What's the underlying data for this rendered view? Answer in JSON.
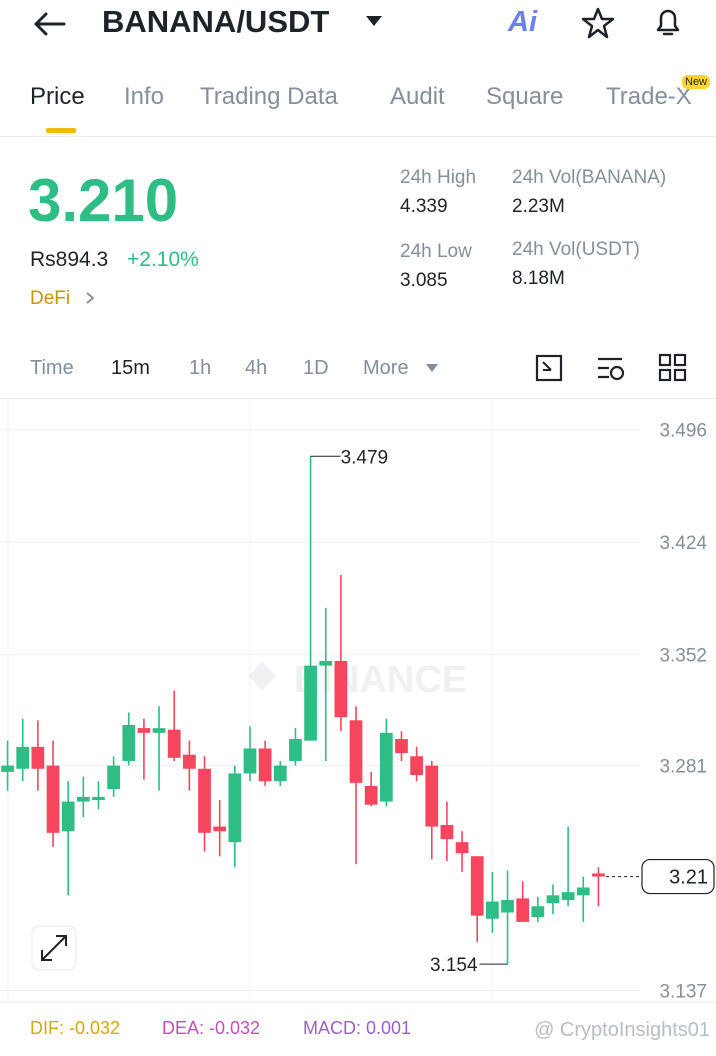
{
  "header": {
    "title": "BANANA/USDT",
    "ai": "Ai"
  },
  "tabs": [
    "Price",
    "Info",
    "Trading Data",
    "Audit",
    "Square",
    "Trade-X"
  ],
  "tab_badge": "New",
  "ticker": {
    "price": "3.210",
    "fiat": "Rs894.3",
    "change": "+2.10%",
    "tag": "DeFi",
    "stats": [
      {
        "label": "24h High",
        "value": "4.339"
      },
      {
        "label": "24h Vol(BANANA)",
        "value": "2.23M"
      },
      {
        "label": "24h Low",
        "value": "3.085"
      },
      {
        "label": "24h Vol(USDT)",
        "value": "8.18M"
      }
    ]
  },
  "timeframes": [
    "Time",
    "15m",
    "1h",
    "4h",
    "1D",
    "More"
  ],
  "chart_data": {
    "type": "candlestick",
    "up_color": "#2ebd85",
    "down_color": "#f6465d",
    "categories": [
      null,
      null,
      null,
      null,
      null,
      null,
      null,
      null,
      null,
      null,
      null,
      null,
      null,
      null,
      null,
      null,
      null,
      null,
      null,
      null,
      null,
      null,
      null,
      null,
      null,
      null,
      null,
      null,
      null,
      null,
      null,
      null,
      null,
      null,
      null,
      null,
      null,
      null,
      null,
      null
    ],
    "open": [
      3.277,
      3.279,
      3.293,
      3.281,
      3.239,
      3.258,
      3.259,
      3.266,
      3.284,
      3.305,
      3.302,
      3.304,
      3.288,
      3.279,
      3.242,
      3.232,
      3.276,
      3.292,
      3.271,
      3.284,
      3.297,
      3.345,
      3.348,
      3.31,
      3.268,
      3.258,
      3.298,
      3.287,
      3.281,
      3.243,
      3.232,
      3.223,
      3.183,
      3.187,
      3.196,
      3.184,
      3.193,
      3.195,
      3.198,
      3.212
    ],
    "high": [
      3.297,
      3.311,
      3.31,
      3.297,
      3.271,
      3.274,
      3.271,
      3.287,
      3.315,
      3.311,
      3.319,
      3.329,
      3.297,
      3.287,
      3.259,
      3.281,
      3.306,
      3.297,
      3.284,
      3.305,
      3.479,
      3.382,
      3.403,
      3.319,
      3.277,
      3.311,
      3.303,
      3.293,
      3.284,
      3.258,
      3.239,
      3.223,
      3.213,
      3.214,
      3.207,
      3.197,
      3.205,
      3.242,
      3.21,
      3.216
    ],
    "low": [
      3.265,
      3.271,
      3.265,
      3.229,
      3.198,
      3.248,
      3.253,
      3.261,
      3.281,
      3.272,
      3.265,
      3.284,
      3.265,
      3.226,
      3.223,
      3.216,
      3.271,
      3.268,
      3.268,
      3.281,
      3.297,
      3.284,
      3.303,
      3.218,
      3.255,
      3.255,
      3.284,
      3.271,
      3.221,
      3.22,
      3.213,
      3.168,
      3.174,
      3.154,
      3.181,
      3.181,
      3.186,
      3.191,
      3.181,
      3.191
    ],
    "close": [
      3.281,
      3.293,
      3.279,
      3.238,
      3.258,
      3.261,
      3.261,
      3.281,
      3.307,
      3.302,
      3.305,
      3.286,
      3.279,
      3.238,
      3.239,
      3.276,
      3.292,
      3.271,
      3.281,
      3.298,
      3.345,
      3.348,
      3.312,
      3.27,
      3.256,
      3.302,
      3.289,
      3.275,
      3.242,
      3.234,
      3.225,
      3.185,
      3.194,
      3.195,
      3.181,
      3.191,
      3.198,
      3.2,
      3.203,
      3.21
    ],
    "ylim": [
      3.131,
      3.515
    ],
    "yticks": [
      3.496,
      3.424,
      3.352,
      3.281,
      3.137
    ],
    "grid": true,
    "annotations": {
      "max_index": 20,
      "min_index": 33
    }
  },
  "indicators": [
    "DIF: -0.032",
    "DEA: -0.032",
    "MACD: 0.001"
  ],
  "watermark": "BINANCE",
  "credit": "@ CryptoInsights01"
}
